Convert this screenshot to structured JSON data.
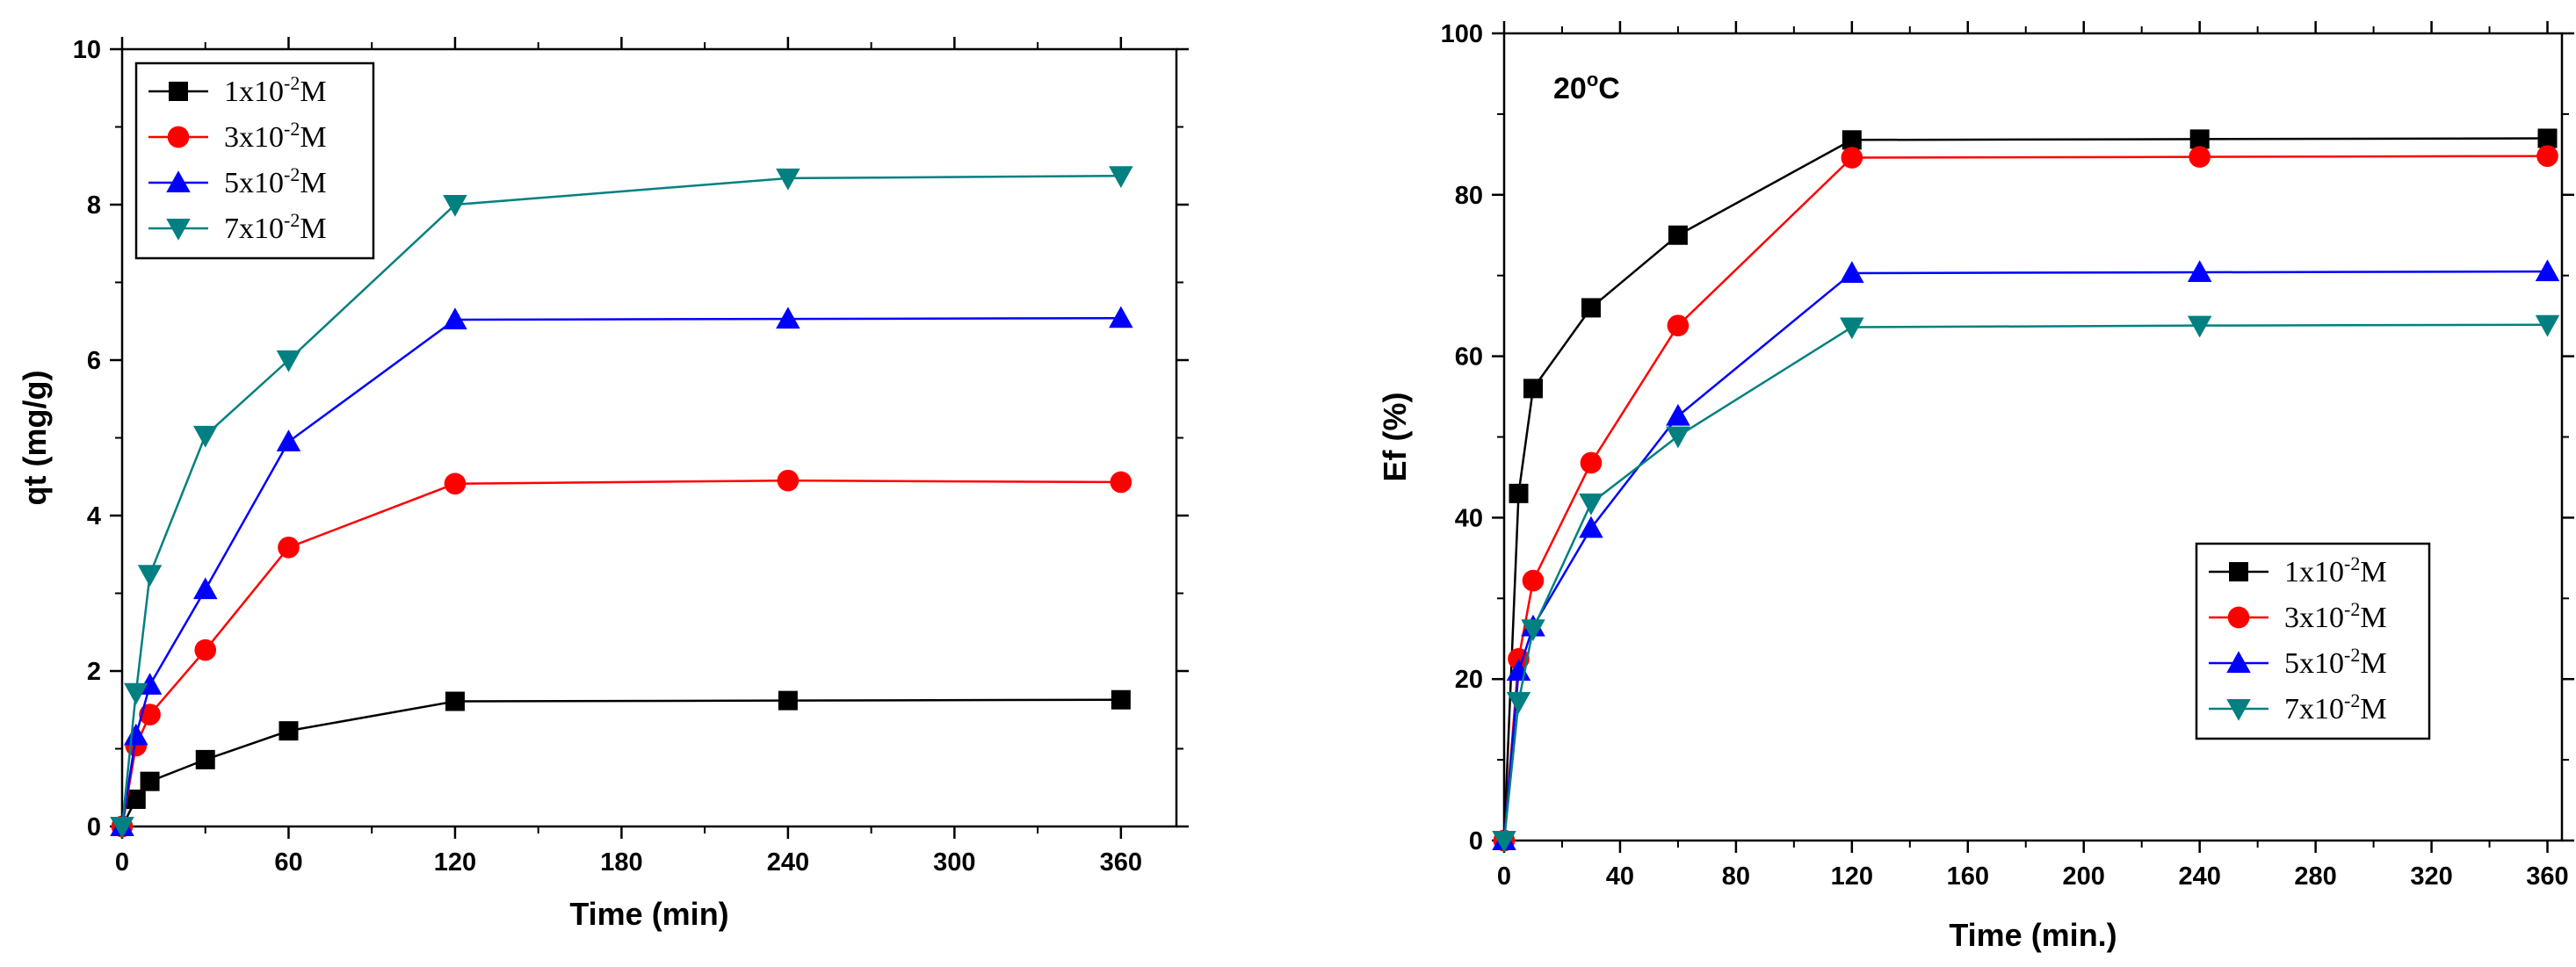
{
  "chart_data": [
    {
      "type": "line",
      "title": "",
      "xlabel": "Time (min)",
      "ylabel": "qt (mg/g)",
      "xlim": [
        0,
        380
      ],
      "ylim": [
        0,
        10
      ],
      "xticks": [
        0,
        60,
        120,
        180,
        240,
        300,
        360
      ],
      "yticks": [
        0,
        2,
        4,
        6,
        8,
        10
      ],
      "legend_position": "top-left",
      "annotation": null,
      "series": [
        {
          "name": "1x10-2M",
          "label_base": "1x10",
          "label_exp": "-2",
          "label_unit": "M",
          "color": "#000000",
          "marker": "square",
          "x": [
            0,
            5,
            10,
            30,
            60,
            120,
            240,
            360
          ],
          "y": [
            0,
            0.35,
            0.58,
            0.86,
            1.23,
            1.61,
            1.62,
            1.63
          ]
        },
        {
          "name": "3x10-2M",
          "label_base": "3x10",
          "label_exp": "-2",
          "label_unit": "M",
          "color": "#ff0000",
          "marker": "circle",
          "x": [
            0,
            5,
            10,
            30,
            60,
            120,
            240,
            360
          ],
          "y": [
            0,
            1.04,
            1.44,
            2.27,
            3.59,
            4.41,
            4.45,
            4.43
          ]
        },
        {
          "name": "5x10-2M",
          "label_base": "5x10",
          "label_exp": "-2",
          "label_unit": "M",
          "color": "#0000ff",
          "marker": "triangle-up",
          "x": [
            0,
            5,
            10,
            30,
            60,
            120,
            240,
            360
          ],
          "y": [
            0,
            1.17,
            1.82,
            3.05,
            4.95,
            6.52,
            6.53,
            6.54
          ]
        },
        {
          "name": "7x10-2M",
          "label_base": "7x10",
          "label_exp": "-2",
          "label_unit": "M",
          "color": "#008080",
          "marker": "triangle-down",
          "x": [
            0,
            5,
            10,
            30,
            60,
            120,
            240,
            360
          ],
          "y": [
            0,
            1.72,
            3.24,
            5.03,
            6.0,
            8.0,
            8.34,
            8.37
          ]
        }
      ]
    },
    {
      "type": "line",
      "title": "",
      "xlabel": "Time (min.)",
      "ylabel": "Ef (%)",
      "xlim": [
        0,
        365
      ],
      "ylim": [
        0,
        100
      ],
      "xticks": [
        0,
        40,
        80,
        120,
        160,
        200,
        240,
        280,
        320,
        360
      ],
      "yticks": [
        0,
        20,
        40,
        60,
        80,
        100
      ],
      "legend_position": "lower-right",
      "annotation": {
        "base": "20",
        "sup": "o",
        "rest": "C"
      },
      "series": [
        {
          "name": "1x10-2M",
          "label_base": "1x10",
          "label_exp": "-2",
          "label_unit": "M",
          "color": "#000000",
          "marker": "square",
          "x": [
            0,
            5,
            10,
            30,
            60,
            120,
            240,
            360
          ],
          "y": [
            0,
            43,
            56,
            66,
            75,
            86.8,
            86.9,
            87
          ]
        },
        {
          "name": "3x10-2M",
          "label_base": "3x10",
          "label_exp": "-2",
          "label_unit": "M",
          "color": "#ff0000",
          "marker": "circle",
          "x": [
            0,
            5,
            10,
            30,
            60,
            120,
            240,
            360
          ],
          "y": [
            0,
            22.5,
            32.2,
            46.8,
            63.8,
            84.6,
            84.7,
            84.8
          ]
        },
        {
          "name": "5x10-2M",
          "label_base": "5x10",
          "label_exp": "-2",
          "label_unit": "M",
          "color": "#0000ff",
          "marker": "triangle-up",
          "x": [
            0,
            5,
            10,
            30,
            60,
            120,
            240,
            360
          ],
          "y": [
            0,
            21,
            26.5,
            38.7,
            52.6,
            70.3,
            70.4,
            70.5
          ]
        },
        {
          "name": "7x10-2M",
          "label_base": "7x10",
          "label_exp": "-2",
          "label_unit": "M",
          "color": "#008080",
          "marker": "triangle-down",
          "x": [
            0,
            5,
            10,
            30,
            60,
            120,
            240,
            360
          ],
          "y": [
            0,
            17.2,
            26.2,
            41.8,
            50.1,
            63.6,
            63.8,
            63.9
          ]
        }
      ]
    }
  ]
}
